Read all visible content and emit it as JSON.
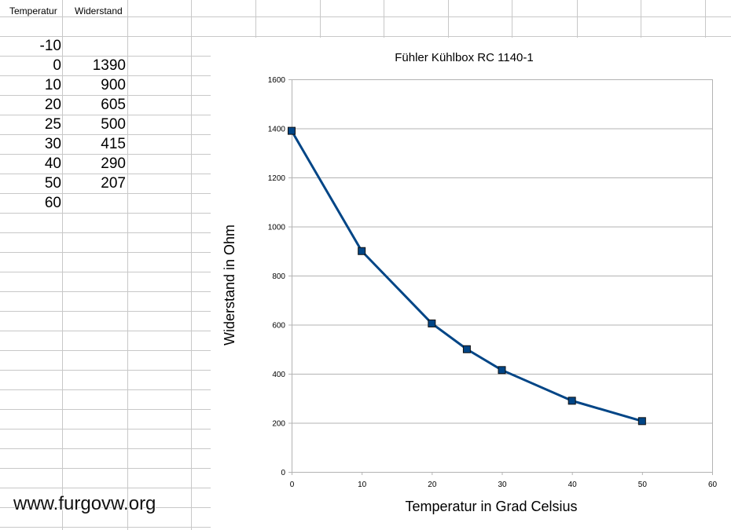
{
  "sheet": {
    "headers": [
      "Temperatur",
      "Widerstand"
    ],
    "rows": [
      {
        "temperatur": "-10",
        "widerstand": ""
      },
      {
        "temperatur": "0",
        "widerstand": "1390"
      },
      {
        "temperatur": "10",
        "widerstand": "900"
      },
      {
        "temperatur": "20",
        "widerstand": "605"
      },
      {
        "temperatur": "25",
        "widerstand": "500"
      },
      {
        "temperatur": "30",
        "widerstand": "415"
      },
      {
        "temperatur": "40",
        "widerstand": "290"
      },
      {
        "temperatur": "50",
        "widerstand": "207"
      },
      {
        "temperatur": "60",
        "widerstand": ""
      }
    ]
  },
  "watermark": "www.furgovw.org",
  "chart_data": {
    "type": "line",
    "title": "Fühler Kühlbox RC 1140-1",
    "xlabel": "Temperatur in Grad Celsius",
    "ylabel": "Widerstand in Ohm",
    "x": [
      0,
      10,
      20,
      25,
      30,
      40,
      50
    ],
    "series": [
      {
        "values": [
          1390,
          900,
          605,
          500,
          415,
          290,
          207
        ],
        "color": "#004586",
        "marker": "square"
      }
    ],
    "xlim": [
      0,
      60
    ],
    "ylim": [
      0,
      1600
    ],
    "xticks": [
      0,
      10,
      20,
      30,
      40,
      50,
      60
    ],
    "yticks": [
      0,
      200,
      400,
      600,
      800,
      1000,
      1200,
      1400,
      1600
    ],
    "grid": "horizontal",
    "legend": "none"
  }
}
